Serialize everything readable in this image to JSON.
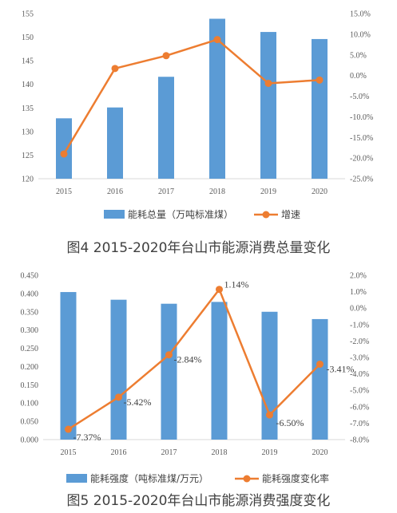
{
  "chart_data": [
    {
      "type": "bar",
      "categories": [
        "2015",
        "2016",
        "2017",
        "2018",
        "2019",
        "2020"
      ],
      "series": [
        {
          "name": "能耗总量（万吨标准煤）",
          "type": "bar",
          "axis": "left",
          "values": [
            132.8,
            135.1,
            141.6,
            153.9,
            151.1,
            149.6
          ]
        },
        {
          "name": "增速",
          "type": "line",
          "axis": "right",
          "values": [
            -19.0,
            1.7,
            4.8,
            8.7,
            -1.9,
            -1.1
          ]
        }
      ],
      "left_ylim": [
        120,
        155
      ],
      "left_ticks": [
        "120",
        "125",
        "130",
        "135",
        "140",
        "145",
        "150",
        "155"
      ],
      "right_ylim": [
        -25,
        15
      ],
      "right_ticks": [
        "-25.0%",
        "-20.0%",
        "-15.0%",
        "-10.0%",
        "-5.0%",
        "0.0%",
        "5.0%",
        "10.0%",
        "15.0%"
      ],
      "legend": "bottom",
      "caption": "图4 2015-2020年台山市能源消费总量变化",
      "colors": {
        "bar": "#5B9BD5",
        "line": "#ED7D31"
      }
    },
    {
      "type": "bar",
      "categories": [
        "2015",
        "2016",
        "2017",
        "2018",
        "2019",
        "2020"
      ],
      "series": [
        {
          "name": "能耗强度（吨标准煤/万元）",
          "type": "bar",
          "axis": "left",
          "values": [
            0.404,
            0.383,
            0.372,
            0.377,
            0.35,
            0.33
          ]
        },
        {
          "name": "能耗强度变化率",
          "type": "line",
          "axis": "right",
          "values": [
            -7.37,
            -5.42,
            -2.84,
            1.14,
            -6.5,
            -3.41
          ]
        }
      ],
      "data_labels": [
        "-7.37%",
        "-5.42%",
        "-2.84%",
        "1.14%",
        "-6.50%",
        "-3.41%"
      ],
      "left_ylim": [
        0,
        0.45
      ],
      "left_ticks": [
        "0.000",
        "0.050",
        "0.100",
        "0.150",
        "0.200",
        "0.250",
        "0.300",
        "0.350",
        "0.400",
        "0.450"
      ],
      "right_ylim": [
        -8,
        2
      ],
      "right_ticks": [
        "-8.0%",
        "-7.0%",
        "-6.0%",
        "-5.0%",
        "-4.0%",
        "-3.0%",
        "-2.0%",
        "-1.0%",
        "0.0%",
        "1.0%",
        "2.0%"
      ],
      "legend": "bottom",
      "caption": "图5 2015-2020年台山市能源消费强度变化",
      "colors": {
        "bar": "#5B9BD5",
        "line": "#ED7D31"
      }
    }
  ]
}
